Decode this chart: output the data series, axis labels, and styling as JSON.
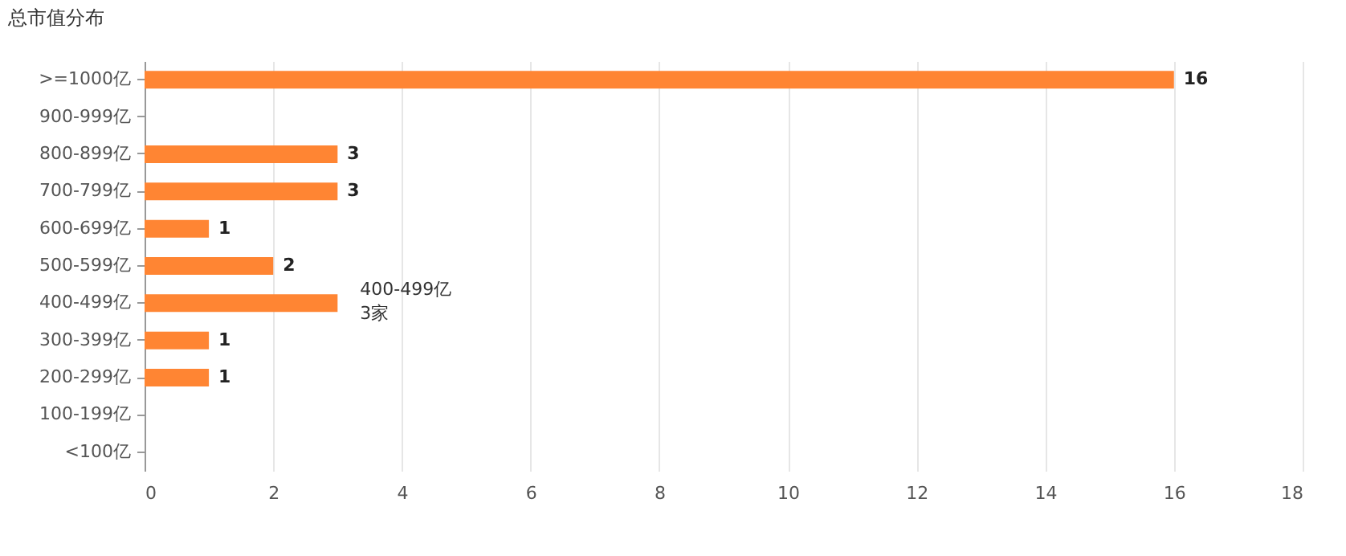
{
  "chart_data": {
    "type": "bar",
    "orientation": "horizontal",
    "title": "总市值分布",
    "categories": [
      ">=1000亿",
      "900-999亿",
      "800-899亿",
      "700-799亿",
      "600-699亿",
      "500-599亿",
      "400-499亿",
      "300-399亿",
      "200-299亿",
      "100-199亿",
      "<100亿"
    ],
    "values": [
      16,
      0,
      3,
      3,
      1,
      2,
      3,
      1,
      1,
      0,
      0
    ],
    "value_labels": [
      "16",
      null,
      "3",
      "3",
      "1",
      "2",
      null,
      "1",
      "1",
      null,
      null
    ],
    "color": "#ff8533",
    "xlim": [
      0,
      18
    ],
    "xticks": [
      0,
      2,
      4,
      6,
      8,
      10,
      12,
      14,
      16,
      18
    ],
    "grid": "x",
    "annotations": [
      {
        "text": "400-499亿",
        "x": 3,
        "y": "400-499亿"
      },
      {
        "text": "3家",
        "x": 3,
        "y": "400-499亿"
      }
    ]
  }
}
